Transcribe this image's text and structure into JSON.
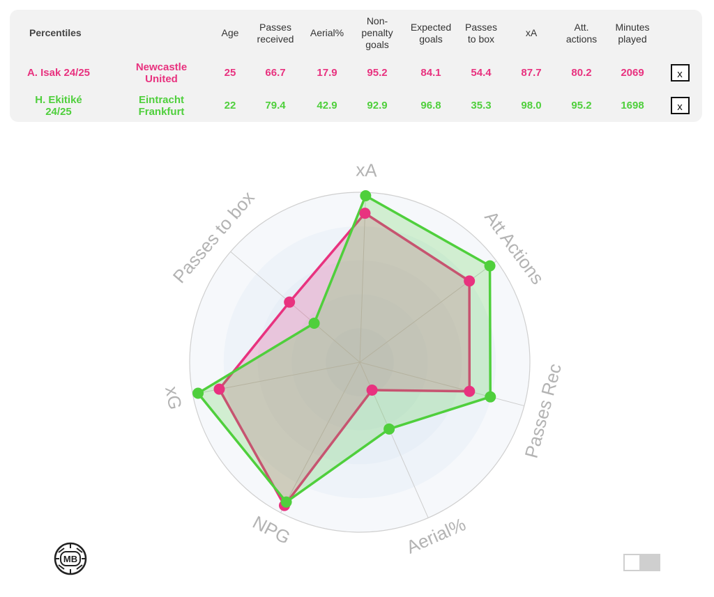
{
  "table": {
    "headers": [
      "Percentiles",
      "",
      "Age",
      "Passes\nreceived",
      "Aerial%",
      "Non-\npenalty\ngoals",
      "Expected\ngoals",
      "Passes\nto box",
      "xA",
      "Att.\nactions",
      "Minutes\nplayed"
    ],
    "remove_label": "x",
    "rows": [
      {
        "player": "A. Isak 24/25",
        "team": "Newcastle United",
        "color": "#e8327f",
        "values": [
          "25",
          "66.7",
          "17.9",
          "95.2",
          "84.1",
          "54.4",
          "87.7",
          "80.2",
          "2069"
        ]
      },
      {
        "player": "H. Ekitiké 24/25",
        "team": "Eintracht Frankfurt",
        "color": "#4fcf3c",
        "values": [
          "22",
          "79.4",
          "42.9",
          "92.9",
          "96.8",
          "35.3",
          "98.0",
          "95.2",
          "1698"
        ]
      }
    ]
  },
  "chart_data": {
    "type": "radar",
    "axes": [
      "xA",
      "Att Actions",
      "Passes Rec",
      "Aerial%",
      "NPG",
      "xG",
      "Passes to box"
    ],
    "range": [
      0,
      100
    ],
    "series": [
      {
        "name": "A. Isak 24/25",
        "color": "#e8327f",
        "values": [
          87.7,
          80.2,
          66.7,
          17.9,
          95.2,
          84.1,
          54.4
        ]
      },
      {
        "name": "H. Ekitiké 24/25",
        "color": "#4fcf3c",
        "values": [
          98.0,
          95.2,
          79.4,
          42.9,
          92.9,
          96.8,
          35.3
        ]
      }
    ]
  },
  "logo": {
    "text": "MB",
    "icon": "mb-logo-icon"
  },
  "colors": {
    "isak": "#e8327f",
    "ekitike": "#4fcf3c",
    "axis_label": "#b3b3b3"
  }
}
